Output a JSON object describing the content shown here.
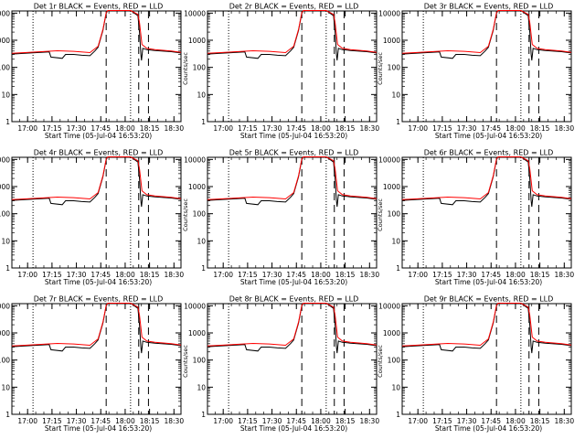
{
  "figure": {
    "xlabel": "Start Time (05-Jul-04 16:53:20)",
    "ylabel": "Counts/sec",
    "x_tick_labels": [
      "17:00",
      "17:15",
      "17:30",
      "17:45",
      "18:00",
      "18:15",
      "18:30"
    ],
    "y_tick_labels": [
      "1",
      "10",
      "100",
      "1000",
      "10000"
    ],
    "colors": {
      "events": "#000000",
      "lld": "#ff0000",
      "axes": "#000000",
      "background": "#ffffff"
    }
  },
  "chart_data": [
    {
      "type": "line",
      "title": "Det 1r BLACK = Events, RED = LLD",
      "xlabel": "Start Time (05-Jul-04 16:53:20)",
      "ylabel": "Counts/sec",
      "ylog": true,
      "ylim": [
        1,
        12000
      ],
      "xlim_minutes": [
        -3,
        101
      ],
      "dotted_lines_min": [
        10,
        70
      ],
      "dashed_lines_min": [
        55,
        75,
        81
      ]
    },
    {
      "type": "line",
      "title": "Det 2r BLACK = Events, RED = LLD",
      "xlabel": "Start Time (05-Jul-04 16:53:20)",
      "ylabel": "Counts/sec",
      "ylog": true,
      "ylim": [
        1,
        12000
      ],
      "xlim_minutes": [
        -3,
        101
      ],
      "dotted_lines_min": [
        10,
        70
      ],
      "dashed_lines_min": [
        55,
        75,
        81
      ]
    },
    {
      "type": "line",
      "title": "Det 3r BLACK = Events, RED = LLD",
      "xlabel": "Start Time (05-Jul-04 16:53:20)",
      "ylabel": "Counts/sec",
      "ylog": true,
      "ylim": [
        1,
        12000
      ],
      "xlim_minutes": [
        -3,
        101
      ],
      "dotted_lines_min": [
        10,
        70
      ],
      "dashed_lines_min": [
        55,
        75,
        81
      ]
    },
    {
      "type": "line",
      "title": "Det 4r BLACK = Events, RED = LLD",
      "xlabel": "Start Time (05-Jul-04 16:53:20)",
      "ylabel": "Counts/sec",
      "ylog": true,
      "ylim": [
        1,
        12000
      ],
      "xlim_minutes": [
        -3,
        101
      ],
      "dotted_lines_min": [
        10,
        70
      ],
      "dashed_lines_min": [
        55,
        75,
        81
      ]
    },
    {
      "type": "line",
      "title": "Det 5r BLACK = Events, RED = LLD",
      "xlabel": "Start Time (05-Jul-04 16:53:20)",
      "ylabel": "Counts/sec",
      "ylog": true,
      "ylim": [
        1,
        12000
      ],
      "xlim_minutes": [
        -3,
        101
      ],
      "dotted_lines_min": [
        10,
        70
      ],
      "dashed_lines_min": [
        55,
        75,
        81
      ]
    },
    {
      "type": "line",
      "title": "Det 6r BLACK = Events, RED = LLD",
      "xlabel": "Start Time (05-Jul-04 16:53:20)",
      "ylabel": "Counts/sec",
      "ylog": true,
      "ylim": [
        1,
        12000
      ],
      "xlim_minutes": [
        -3,
        101
      ],
      "dotted_lines_min": [
        10,
        70
      ],
      "dashed_lines_min": [
        55,
        75,
        81
      ]
    },
    {
      "type": "line",
      "title": "Det 7r BLACK = Events, RED = LLD",
      "xlabel": "Start Time (05-Jul-04 16:53:20)",
      "ylabel": "Counts/sec",
      "ylog": true,
      "ylim": [
        1,
        12000
      ],
      "xlim_minutes": [
        -3,
        101
      ],
      "dotted_lines_min": [
        10,
        70
      ],
      "dashed_lines_min": [
        55,
        75,
        81
      ]
    },
    {
      "type": "line",
      "title": "Det 8r BLACK = Events, RED = LLD",
      "xlabel": "Start Time (05-Jul-04 16:53:20)",
      "ylabel": "Counts/sec",
      "ylog": true,
      "ylim": [
        1,
        12000
      ],
      "xlim_minutes": [
        -3,
        101
      ],
      "dotted_lines_min": [
        10,
        70
      ],
      "dashed_lines_min": [
        55,
        75,
        81
      ]
    },
    {
      "type": "line",
      "title": "Det 9r BLACK = Events, RED = LLD",
      "xlabel": "Start Time (05-Jul-04 16:53:20)",
      "ylabel": "Counts/sec",
      "ylog": true,
      "ylim": [
        1,
        12000
      ],
      "xlim_minutes": [
        -3,
        101
      ],
      "dotted_lines_min": [
        10,
        70
      ],
      "dashed_lines_min": [
        55,
        75,
        81
      ]
    }
  ],
  "series": {
    "lld": {
      "name": "LLD",
      "x": [
        -3,
        5,
        15,
        25,
        35,
        45,
        50,
        53,
        55,
        56,
        70,
        74.5,
        75.5,
        77,
        80,
        85,
        95,
        101
      ],
      "y": [
        330,
        350,
        380,
        410,
        390,
        350,
        600,
        2500,
        10500,
        12500,
        12500,
        9000,
        4500,
        700,
        500,
        450,
        400,
        360
      ]
    },
    "events": {
      "name": "Events",
      "x": [
        -3,
        5,
        15,
        20,
        21,
        28,
        30,
        35,
        40,
        45,
        48,
        50,
        53,
        55,
        56,
        70,
        74.5,
        75.5,
        76.3,
        76.7,
        77.5,
        80,
        85,
        95,
        101
      ],
      "y": [
        310,
        330,
        360,
        370,
        240,
        215,
        300,
        300,
        280,
        270,
        400,
        550,
        2300,
        10000,
        12500,
        12500,
        8000,
        2000,
        300,
        180,
        500,
        450,
        420,
        380,
        340
      ]
    }
  }
}
